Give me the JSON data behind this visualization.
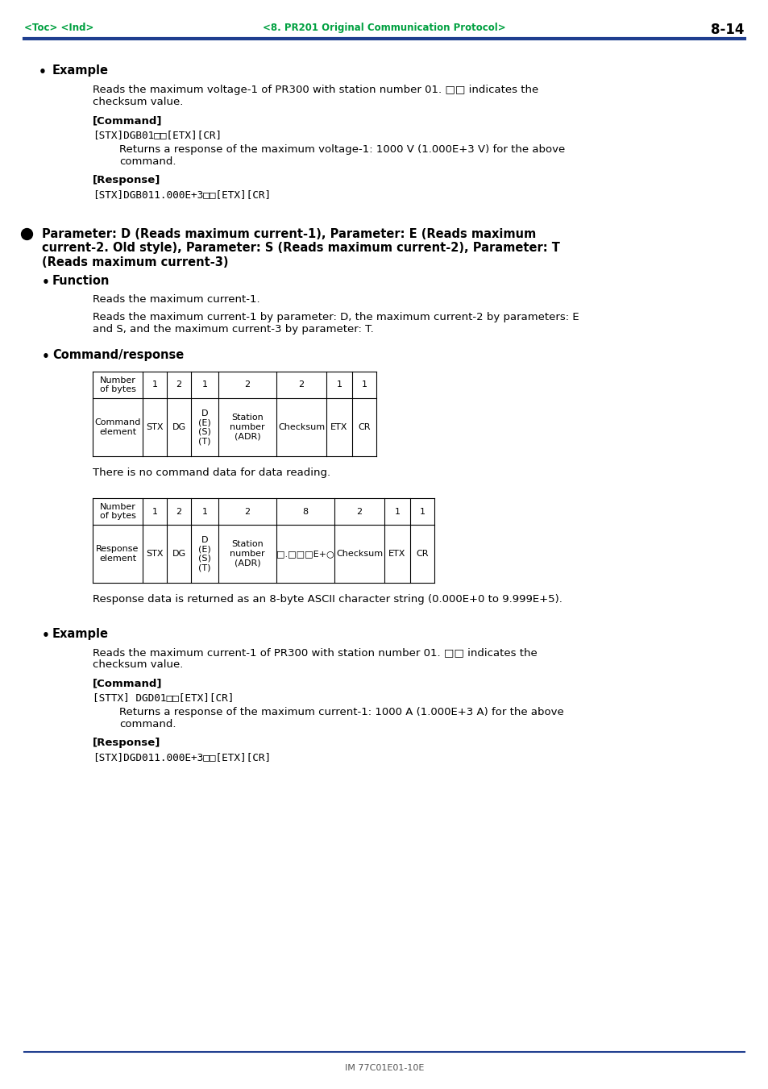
{
  "page_num": "8-14",
  "header_left": "<Toc> <Ind>",
  "header_center": "<8. PR201 Original Communication Protocol>",
  "header_color": "#00a040",
  "header_line_color": "#1f3e8f",
  "bg_color": "#ffffff",
  "footer_text": "IM 77C01E01-10E",
  "bullet_example1_title": "Example",
  "bullet_example1_p1": "Reads the maximum voltage-1 of PR300 with station number 01. □□ indicates the\nchecksum value.",
  "bullet_example1_cmd_label": "[Command]",
  "bullet_example1_cmd_text": "[STX]DGB01□□[ETX][CR]",
  "bullet_example1_cmd_indent": "Returns a response of the maximum voltage-1: 1000 V (1.000E+3 V) for the above\ncommand.",
  "bullet_example1_resp_label": "[Response]",
  "bullet_example1_resp_text": "[STX]DGB011.000E+3□□[ETX][CR]",
  "bullet_param_title": "Parameter: D (Reads maximum current-1), Parameter: E (Reads maximum\ncurrent-2. Old style), Parameter: S (Reads maximum current-2), Parameter: T\n(Reads maximum current-3)",
  "bullet_func_title": "Function",
  "bullet_func_p1": "Reads the maximum current-1.",
  "bullet_func_p2": "Reads the maximum current-1 by parameter: D, the maximum current-2 by parameters: E\nand S, and the maximum current-3 by parameter: T.",
  "bullet_cmd_title": "Command/response",
  "cmd_table_headers": [
    "Number\nof bytes",
    "1",
    "2",
    "1",
    "2",
    "2",
    "1",
    "1"
  ],
  "cmd_table_row2": [
    "Command\nelement",
    "STX",
    "DG",
    "D\n(E)\n(S)\n(T)",
    "Station\nnumber\n(ADR)",
    "Checksum",
    "ETX",
    "CR"
  ],
  "cmd_table_note": "There is no command data for data reading.",
  "resp_table_headers": [
    "Number\nof bytes",
    "1",
    "2",
    "1",
    "2",
    "8",
    "2",
    "1",
    "1"
  ],
  "resp_table_row2": [
    "Response\nelement",
    "STX",
    "DG",
    "D\n(E)\n(S)\n(T)",
    "Station\nnumber\n(ADR)",
    "□.□□□E+○",
    "Checksum",
    "ETX",
    "CR"
  ],
  "resp_table_note": "Response data is returned as an 8-byte ASCII character string (0.000E+0 to 9.999E+5).",
  "bullet_example2_title": "Example",
  "bullet_example2_p1": "Reads the maximum current-1 of PR300 with station number 01. □□ indicates the\nchecksum value.",
  "bullet_example2_cmd_label": "[Command]",
  "bullet_example2_cmd_text": "[STTX] DGD01□□[ETX][CR]",
  "bullet_example2_cmd_indent": "Returns a response of the maximum current-1: 1000 A (1.000E+3 A) for the above\ncommand.",
  "bullet_example2_resp_label": "[Response]",
  "bullet_example2_resp_text": "[STX]DGD011.000E+3□□[ETX][CR]"
}
